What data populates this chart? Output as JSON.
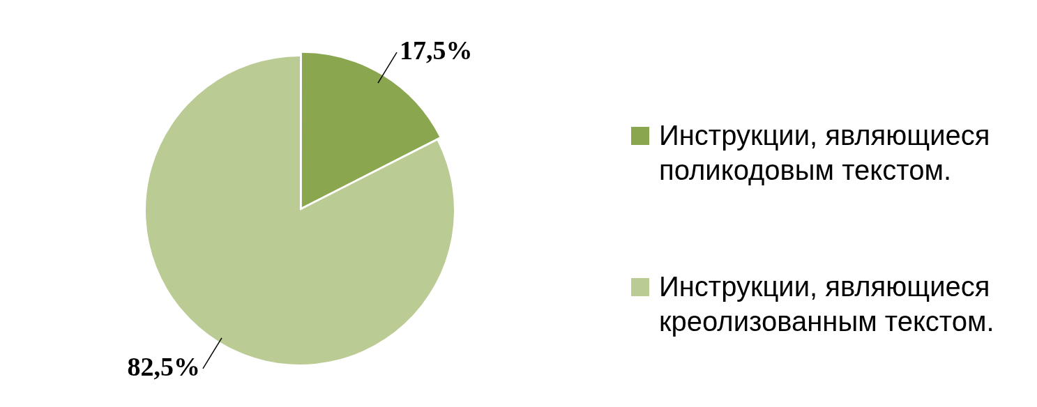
{
  "chart_data": {
    "type": "pie",
    "categories": [
      "Инструкции, являющиеся поликодовым текстом.",
      "Инструкции, являющиеся креолизованным текстом."
    ],
    "values": [
      17.5,
      82.5
    ],
    "colors": [
      "#8aa64f",
      "#bacb94"
    ],
    "value_labels": [
      "17,5%",
      "82,5%"
    ],
    "legend": "right"
  }
}
